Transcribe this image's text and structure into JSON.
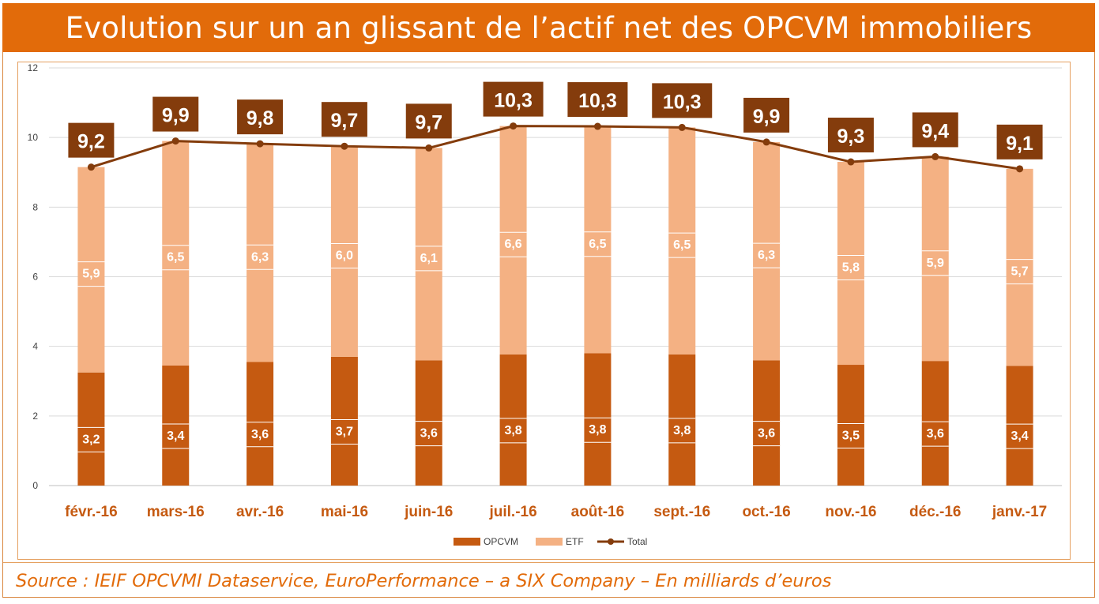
{
  "title": "Evolution sur un an glissant de l’actif net des OPCVM immobiliers",
  "source": "Source : IEIF OPCVMI Dataservice, EuroPerformance – a SIX Company – En milliards d’euros",
  "colors": {
    "accent": "#e26b0a",
    "opcvm": "#c55a11",
    "etf": "#f4b183",
    "total": "#843c0c"
  },
  "chart_data": {
    "type": "bar",
    "stacked": true,
    "categories": [
      "févr.-16",
      "mars-16",
      "avr.-16",
      "mai-16",
      "juin-16",
      "juil.-16",
      "août-16",
      "sept.-16",
      "oct.-16",
      "nov.-16",
      "déc.-16",
      "janv.-17"
    ],
    "ylim": [
      0,
      12
    ],
    "yticks": [
      "0",
      "2",
      "4",
      "6",
      "8",
      "10",
      "12"
    ],
    "grid": true,
    "legend_position": "bottom",
    "series": [
      {
        "name": "OPCVM",
        "kind": "bar",
        "values": [
          3.25,
          3.45,
          3.55,
          3.7,
          3.6,
          3.77,
          3.8,
          3.77,
          3.6,
          3.47,
          3.58,
          3.44
        ],
        "labels": [
          "3,2",
          "3,4",
          "3,6",
          "3,7",
          "3,6",
          "3,8",
          "3,8",
          "3,8",
          "3,6",
          "3,5",
          "3,6",
          "3,4"
        ]
      },
      {
        "name": "ETF",
        "kind": "bar",
        "values": [
          5.9,
          6.45,
          6.27,
          6.05,
          6.1,
          6.56,
          6.52,
          6.52,
          6.27,
          5.83,
          5.87,
          5.66
        ],
        "labels": [
          "5,9",
          "6,5",
          "6,3",
          "6,0",
          "6,1",
          "6,6",
          "6,5",
          "6,5",
          "6,3",
          "5,8",
          "5,9",
          "5,7"
        ]
      },
      {
        "name": "Total",
        "kind": "line",
        "values": [
          9.15,
          9.9,
          9.82,
          9.75,
          9.7,
          10.33,
          10.32,
          10.29,
          9.87,
          9.3,
          9.45,
          9.1
        ],
        "labels": [
          "9,2",
          "9,9",
          "9,8",
          "9,7",
          "9,7",
          "10,3",
          "10,3",
          "10,3",
          "9,9",
          "9,3",
          "9,4",
          "9,1"
        ]
      }
    ]
  }
}
